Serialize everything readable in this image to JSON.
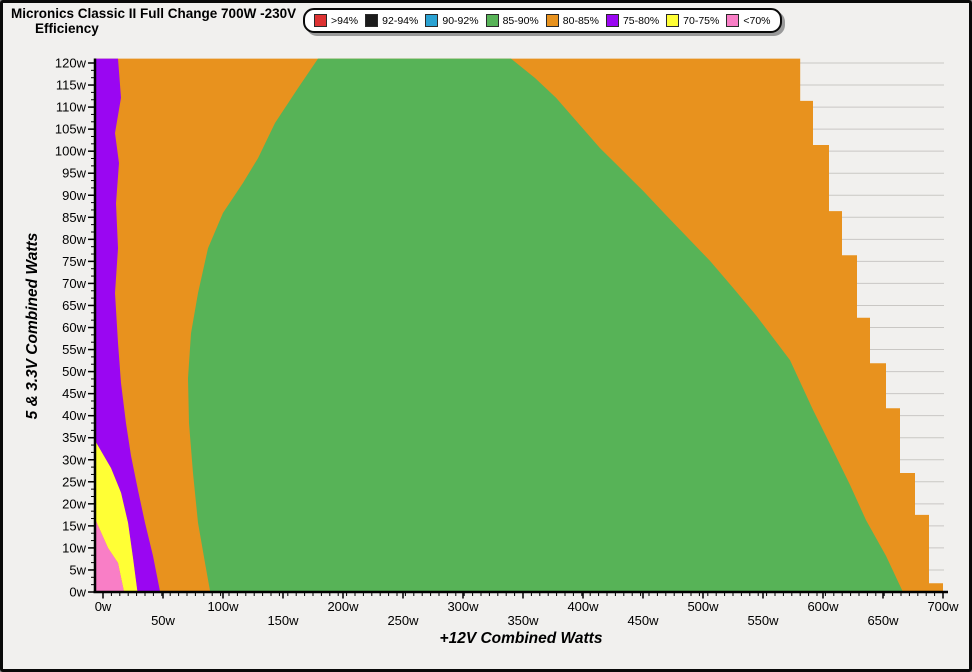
{
  "title": {
    "line1": "Micronics Classic II Full Change 700W -230V",
    "line2": "Efficiency"
  },
  "legend": {
    "items": [
      {
        "label": ">94%",
        "color": "#dd3232"
      },
      {
        "label": "92-94%",
        "color": "#1b1b1b"
      },
      {
        "label": "90-92%",
        "color": "#2aa2d2"
      },
      {
        "label": "85-90%",
        "color": "#57b357"
      },
      {
        "label": "80-85%",
        "color": "#e8921e"
      },
      {
        "label": "75-80%",
        "color": "#9a06f2"
      },
      {
        "label": "70-75%",
        "color": "#ffff35"
      },
      {
        "label": "<70%",
        "color": "#f97ec6"
      }
    ]
  },
  "colors": {
    "background": "#f1f0ee",
    "gridline": "#c9c7c4",
    "axis": "#000000"
  },
  "chart_data": {
    "type": "heatmap",
    "subtype": "filled-efficiency-contour",
    "title": "Micronics Classic II Full Change 700W -230V Efficiency",
    "xlabel": "+12V Combined Watts",
    "ylabel": "5 & 3.3V Combined Watts",
    "xlim": [
      0,
      700
    ],
    "ylim": [
      0,
      120
    ],
    "grid": "horizontal-every-5w",
    "legend_position": "top",
    "x_ticks": [
      {
        "v": 0,
        "label": "0w"
      },
      {
        "v": 50,
        "label": "50w"
      },
      {
        "v": 100,
        "label": "100w"
      },
      {
        "v": 150,
        "label": "150w"
      },
      {
        "v": 200,
        "label": "200w"
      },
      {
        "v": 250,
        "label": "250w"
      },
      {
        "v": 300,
        "label": "300w"
      },
      {
        "v": 350,
        "label": "350w"
      },
      {
        "v": 400,
        "label": "400w"
      },
      {
        "v": 450,
        "label": "450w"
      },
      {
        "v": 500,
        "label": "500w"
      },
      {
        "v": 550,
        "label": "550w"
      },
      {
        "v": 600,
        "label": "600w"
      },
      {
        "v": 650,
        "label": "650w"
      },
      {
        "v": 700,
        "label": "700w"
      }
    ],
    "y_ticks": [
      {
        "v": 0,
        "label": "0w"
      },
      {
        "v": 5,
        "label": "5w"
      },
      {
        "v": 10,
        "label": "10w"
      },
      {
        "v": 15,
        "label": "15w"
      },
      {
        "v": 20,
        "label": "20w"
      },
      {
        "v": 25,
        "label": "25w"
      },
      {
        "v": 30,
        "label": "30w"
      },
      {
        "v": 35,
        "label": "35w"
      },
      {
        "v": 40,
        "label": "40w"
      },
      {
        "v": 45,
        "label": "45w"
      },
      {
        "v": 50,
        "label": "50w"
      },
      {
        "v": 55,
        "label": "55w"
      },
      {
        "v": 60,
        "label": "60w"
      },
      {
        "v": 65,
        "label": "65w"
      },
      {
        "v": 70,
        "label": "70w"
      },
      {
        "v": 75,
        "label": "75w"
      },
      {
        "v": 80,
        "label": "80w"
      },
      {
        "v": 85,
        "label": "85w"
      },
      {
        "v": 90,
        "label": "90w"
      },
      {
        "v": 95,
        "label": "95w"
      },
      {
        "v": 100,
        "label": "100w"
      },
      {
        "v": 105,
        "label": "105w"
      },
      {
        "v": 110,
        "label": "110w"
      },
      {
        "v": 115,
        "label": "115w"
      },
      {
        "v": 120,
        "label": "120w"
      }
    ],
    "bands": [
      {
        "range": ">94%",
        "color": "#dd3232",
        "present": false
      },
      {
        "range": "92-94%",
        "color": "#1b1b1b",
        "present": false
      },
      {
        "range": "90-92%",
        "color": "#2aa2d2",
        "present": false
      },
      {
        "range": "85-90%",
        "color": "#57b357",
        "present": true
      },
      {
        "range": "80-85%",
        "color": "#e8921e",
        "present": true
      },
      {
        "range": "75-80%",
        "color": "#9a06f2",
        "present": true
      },
      {
        "range": "70-75%",
        "color": "#ffff35",
        "present": true
      },
      {
        "range": "<70%",
        "color": "#f97ec6",
        "present": true
      }
    ],
    "regions": [
      {
        "band": "80-85%",
        "color": "#e8921e",
        "points": [
          [
            -7,
            121
          ],
          [
            581,
            121
          ],
          [
            581,
            111.4
          ],
          [
            591.7,
            111.4
          ],
          [
            591.7,
            101.4
          ],
          [
            605,
            101.4
          ],
          [
            605,
            86.4
          ],
          [
            615.8,
            86.4
          ],
          [
            615.8,
            76.4
          ],
          [
            628.3,
            76.4
          ],
          [
            628.3,
            62.2
          ],
          [
            639.2,
            62.2
          ],
          [
            639.2,
            51.9
          ],
          [
            652.5,
            51.9
          ],
          [
            652.5,
            41.7
          ],
          [
            664.2,
            41.7
          ],
          [
            664.2,
            27
          ],
          [
            676.7,
            27
          ],
          [
            676.7,
            17.5
          ],
          [
            688.3,
            17.5
          ],
          [
            688.3,
            2
          ],
          [
            700,
            2
          ],
          [
            700,
            -1
          ],
          [
            -7,
            -1
          ]
        ]
      },
      {
        "band": "75-80%",
        "color": "#9a06f2",
        "points": [
          [
            -7,
            121
          ],
          [
            12.5,
            121
          ],
          [
            15,
            112.1
          ],
          [
            10,
            104.1
          ],
          [
            13.3,
            97.3
          ],
          [
            10.8,
            88.2
          ],
          [
            12.5,
            78
          ],
          [
            10,
            67.8
          ],
          [
            12.5,
            56.5
          ],
          [
            15,
            47.4
          ],
          [
            19.2,
            38.3
          ],
          [
            23.3,
            30.9
          ],
          [
            29.2,
            23.1
          ],
          [
            35,
            15.7
          ],
          [
            41.7,
            8.2
          ],
          [
            48.3,
            -1
          ],
          [
            29.2,
            -1
          ],
          [
            25,
            7.7
          ],
          [
            20.8,
            15.7
          ],
          [
            15,
            22.5
          ],
          [
            6.7,
            28.1
          ],
          [
            -7,
            34.5
          ]
        ]
      },
      {
        "band": "70-75%",
        "color": "#ffff35",
        "points": [
          [
            -7,
            34.5
          ],
          [
            6.7,
            28.1
          ],
          [
            15,
            22.5
          ],
          [
            20.8,
            15.7
          ],
          [
            25,
            7.7
          ],
          [
            29.2,
            -1
          ],
          [
            18.3,
            -1
          ],
          [
            12.5,
            6.6
          ],
          [
            4.2,
            10
          ],
          [
            -7,
            16.8
          ]
        ]
      },
      {
        "band": "<70%",
        "color": "#f97ec6",
        "points": [
          [
            -7,
            16.8
          ],
          [
            4.2,
            10
          ],
          [
            12.5,
            6.6
          ],
          [
            18.3,
            -1
          ],
          [
            -7,
            -1
          ]
        ]
      },
      {
        "band": "85-90%",
        "color": "#57b357",
        "points": [
          [
            90,
            -1
          ],
          [
            85,
            6.6
          ],
          [
            79.2,
            15.7
          ],
          [
            75,
            27
          ],
          [
            71.7,
            38.3
          ],
          [
            70.8,
            48.5
          ],
          [
            73.3,
            58.7
          ],
          [
            79.2,
            67.8
          ],
          [
            87.5,
            78
          ],
          [
            100,
            86
          ],
          [
            116.7,
            92.8
          ],
          [
            129.2,
            98.4
          ],
          [
            143.3,
            106.4
          ],
          [
            162.5,
            114.3
          ],
          [
            179.2,
            121
          ],
          [
            340,
            121
          ],
          [
            360,
            116.6
          ],
          [
            377.5,
            112.1
          ],
          [
            397.5,
            105.9
          ],
          [
            414.2,
            100.7
          ],
          [
            430.8,
            96.2
          ],
          [
            450,
            91
          ],
          [
            469.2,
            85.5
          ],
          [
            487.5,
            80.3
          ],
          [
            505.8,
            75.1
          ],
          [
            525,
            69
          ],
          [
            544.2,
            62.8
          ],
          [
            572.5,
            52.6
          ],
          [
            591.7,
            41.3
          ],
          [
            606.7,
            33.1
          ],
          [
            622.5,
            24.3
          ],
          [
            635.8,
            16.3
          ],
          [
            652.5,
            8.2
          ],
          [
            668.3,
            -1
          ]
        ]
      }
    ]
  }
}
